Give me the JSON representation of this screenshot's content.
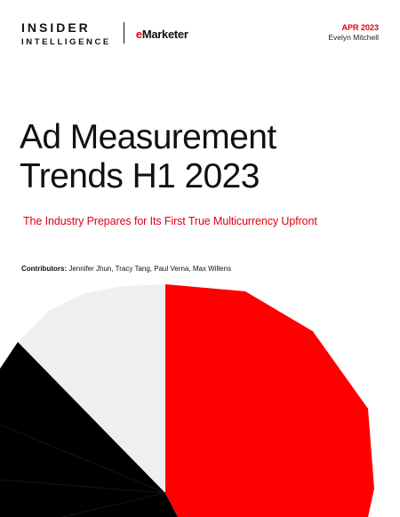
{
  "header": {
    "brand_line1": "INSIDER",
    "brand_line2": "INTELLIGENCE",
    "partner_e": "e",
    "partner_rest": "Marketer",
    "date": "APR 2023",
    "author": "Evelyn Mitchell"
  },
  "report": {
    "title_line1": "Ad Measurement",
    "title_line2": "Trends H1 2023",
    "subtitle": "The Industry Prepares for Its First True Multicurrency Upfront",
    "contributors_label": "Contributors:",
    "contributors_names": " Jennifer Jhun, Tracy Tang, Paul Verna, Max Willens"
  },
  "colors": {
    "accent_red": "#e3000f",
    "black": "#000000",
    "light_gray": "#eef0f0"
  }
}
